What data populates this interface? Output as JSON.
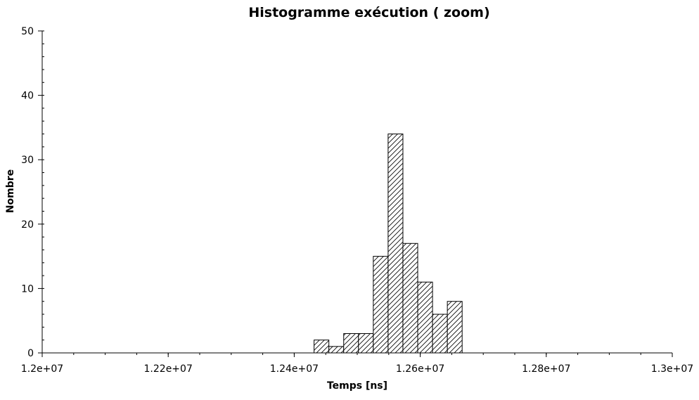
{
  "chart_data": {
    "type": "bar",
    "title": "Histogramme exécution ( zoom)",
    "xlabel": "Temps [ns]",
    "ylabel": "Nombre",
    "xlim": [
      12000000,
      13000000
    ],
    "ylim": [
      0,
      50
    ],
    "x_ticks": [
      12000000,
      12200000,
      12400000,
      12600000,
      12800000,
      13000000
    ],
    "x_tick_labels": [
      "1.2e+07",
      "1.22e+07",
      "1.24e+07",
      "1.26e+07",
      "1.28e+07",
      "1.3e+07"
    ],
    "y_ticks": [
      0,
      10,
      20,
      30,
      40,
      50
    ],
    "y_tick_labels": [
      "0",
      "10",
      "20",
      "30",
      "40",
      "50"
    ],
    "x_minor_step": 50000,
    "y_minor_step": 2,
    "grid": false,
    "fill": "hatched",
    "colors": {
      "bar_stroke": "#000000",
      "background": "#ffffff"
    },
    "bars": [
      {
        "x0": 12431500,
        "x1": 12455000,
        "value": 2
      },
      {
        "x0": 12455000,
        "x1": 12478500,
        "value": 1
      },
      {
        "x0": 12478500,
        "x1": 12502000,
        "value": 3
      },
      {
        "x0": 12502000,
        "x1": 12525500,
        "value": 3
      },
      {
        "x0": 12525500,
        "x1": 12549000,
        "value": 15
      },
      {
        "x0": 12549000,
        "x1": 12572500,
        "value": 34
      },
      {
        "x0": 12572500,
        "x1": 12596000,
        "value": 17
      },
      {
        "x0": 12596000,
        "x1": 12619500,
        "value": 11
      },
      {
        "x0": 12619500,
        "x1": 12643000,
        "value": 6
      },
      {
        "x0": 12643000,
        "x1": 12666500,
        "value": 8
      }
    ]
  }
}
